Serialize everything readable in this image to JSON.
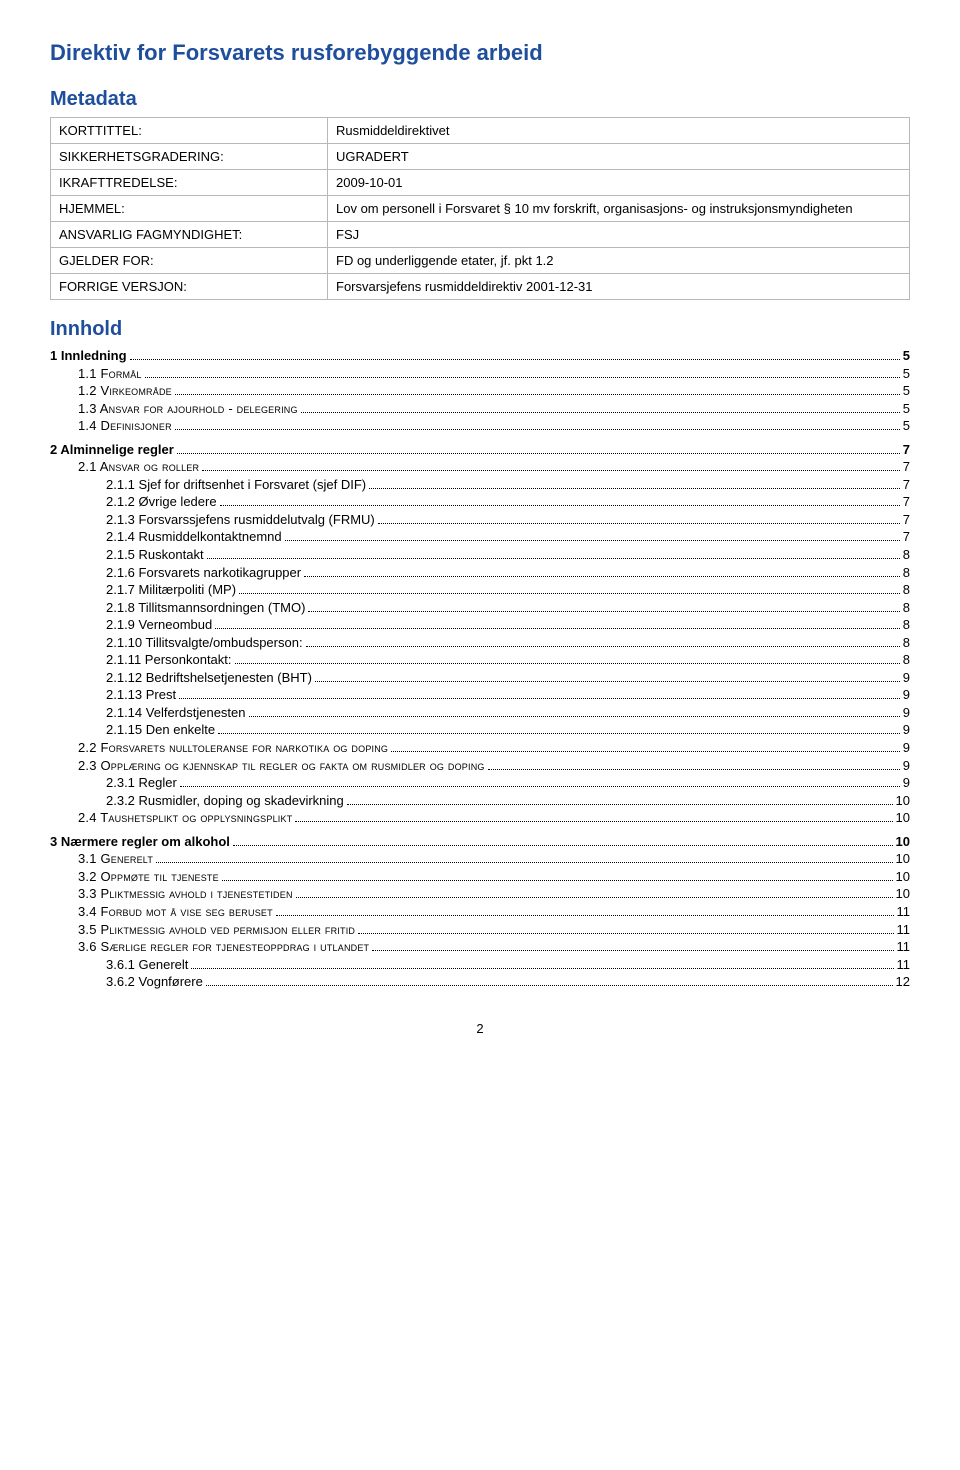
{
  "title": "Direktiv for Forsvarets rusforebyggende arbeid",
  "metadata_heading": "Metadata",
  "metadata": [
    {
      "label": "KORTTITTEL:",
      "value": "Rusmiddeldirektivet"
    },
    {
      "label": "SIKKERHETSGRADERING:",
      "value": "UGRADERT"
    },
    {
      "label": "IKRAFTTREDELSE:",
      "value": "2009-10-01"
    },
    {
      "label": "HJEMMEL:",
      "value": "Lov om personell i Forsvaret § 10 mv forskrift, organisasjons- og instruksjonsmyndigheten"
    },
    {
      "label": "ANSVARLIG FAGMYNDIGHET:",
      "value": "FSJ"
    },
    {
      "label": "GJELDER FOR:",
      "value": "FD og underliggende etater, jf. pkt 1.2"
    },
    {
      "label": "FORRIGE VERSJON:",
      "value": "Forsvarsjefens rusmiddeldirektiv 2001-12-31"
    }
  ],
  "contents_heading": "Innhold",
  "toc": [
    {
      "level": 1,
      "text": "1 Innledning",
      "page": "5"
    },
    {
      "level": 2,
      "text": "1.1 Formål",
      "page": "5",
      "smallcaps": true
    },
    {
      "level": 2,
      "text": "1.2 Virkeområde",
      "page": "5",
      "smallcaps": true
    },
    {
      "level": 2,
      "text": "1.3 Ansvar for ajourhold - delegering",
      "page": "5",
      "smallcaps": true
    },
    {
      "level": 2,
      "text": "1.4 Definisjoner",
      "page": "5",
      "smallcaps": true
    },
    {
      "level": 1,
      "text": "2 Alminnelige regler",
      "page": "7"
    },
    {
      "level": 2,
      "text": "2.1 Ansvar og roller",
      "page": "7",
      "smallcaps": true
    },
    {
      "level": 3,
      "text": "2.1.1 Sjef for driftsenhet i Forsvaret (sjef DIF)",
      "page": "7"
    },
    {
      "level": 3,
      "text": "2.1.2 Øvrige ledere",
      "page": "7"
    },
    {
      "level": 3,
      "text": "2.1.3 Forsvarssjefens rusmiddelutvalg (FRMU)",
      "page": "7"
    },
    {
      "level": 3,
      "text": "2.1.4 Rusmiddelkontaktnemnd",
      "page": "7"
    },
    {
      "level": 3,
      "text": "2.1.5 Ruskontakt",
      "page": "8"
    },
    {
      "level": 3,
      "text": "2.1.6 Forsvarets narkotikagrupper",
      "page": "8"
    },
    {
      "level": 3,
      "text": "2.1.7 Militærpoliti (MP)",
      "page": "8"
    },
    {
      "level": 3,
      "text": "2.1.8 Tillitsmannsordningen (TMO)",
      "page": "8"
    },
    {
      "level": 3,
      "text": "2.1.9 Verneombud",
      "page": "8"
    },
    {
      "level": 3,
      "text": "2.1.10 Tillitsvalgte/ombudsperson:",
      "page": "8"
    },
    {
      "level": 3,
      "text": "2.1.11 Personkontakt:",
      "page": "8"
    },
    {
      "level": 3,
      "text": "2.1.12 Bedriftshelsetjenesten (BHT)",
      "page": "9"
    },
    {
      "level": 3,
      "text": "2.1.13 Prest",
      "page": "9"
    },
    {
      "level": 3,
      "text": "2.1.14 Velferdstjenesten",
      "page": "9"
    },
    {
      "level": 3,
      "text": "2.1.15 Den enkelte",
      "page": "9"
    },
    {
      "level": 2,
      "text": "2.2 Forsvarets nulltoleranse for narkotika og doping",
      "page": "9",
      "smallcaps": true
    },
    {
      "level": 2,
      "text": "2.3 Opplæring og kjennskap til regler og fakta om rusmidler og doping",
      "page": "9",
      "smallcaps": true
    },
    {
      "level": 3,
      "text": "2.3.1 Regler",
      "page": "9"
    },
    {
      "level": 3,
      "text": "2.3.2 Rusmidler, doping og skadevirkning",
      "page": "10"
    },
    {
      "level": 2,
      "text": "2.4 Taushetsplikt og opplysningsplikt",
      "page": "10",
      "smallcaps": true
    },
    {
      "level": 1,
      "text": "3 Nærmere regler om alkohol",
      "page": "10"
    },
    {
      "level": 2,
      "text": "3.1 Generelt",
      "page": "10",
      "smallcaps": true
    },
    {
      "level": 2,
      "text": "3.2 Oppmøte til tjeneste",
      "page": "10",
      "smallcaps": true
    },
    {
      "level": 2,
      "text": "3.3 Pliktmessig avhold i tjenestetiden",
      "page": "10",
      "smallcaps": true
    },
    {
      "level": 2,
      "text": "3.4 Forbud mot å vise seg beruset",
      "page": "11",
      "smallcaps": true
    },
    {
      "level": 2,
      "text": "3.5 Pliktmessig avhold ved permisjon eller fritid",
      "page": "11",
      "smallcaps": true
    },
    {
      "level": 2,
      "text": "3.6 Særlige regler for tjenesteoppdrag i utlandet",
      "page": "11",
      "smallcaps": true
    },
    {
      "level": 3,
      "text": "3.6.1 Generelt",
      "page": "11"
    },
    {
      "level": 3,
      "text": "3.6.2 Vognførere",
      "page": "12"
    }
  ],
  "page_number": "2",
  "colors": {
    "heading": "#1f4e9c",
    "text": "#000000",
    "border": "#b8b8b8",
    "background": "#ffffff"
  }
}
